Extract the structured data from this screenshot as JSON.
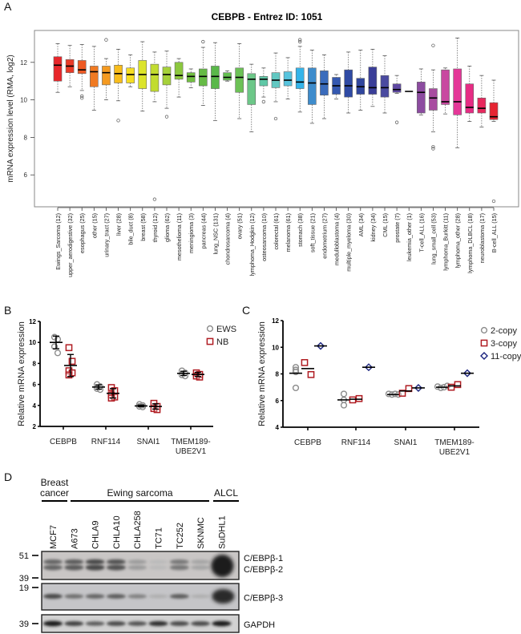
{
  "panels": {
    "A": {
      "letter": "A"
    },
    "B": {
      "letter": "B"
    },
    "C": {
      "letter": "C"
    },
    "D": {
      "letter": "D"
    }
  },
  "chart_data": [
    {
      "id": "A",
      "type": "box",
      "title": "CEBPB  -  Entrez ID: 1051",
      "xlabel": "",
      "ylabel": "mRNA expression level (RMA, log2)",
      "ylim": [
        4.3,
        13.7
      ],
      "yticks": [
        6,
        8,
        10,
        12
      ],
      "grid": false,
      "categories": [
        "Ewings_Sarcoma (12)",
        "upper_aerodigestive (32)",
        "esophagus (25)",
        "other (15)",
        "urinary_tract (27)",
        "liver (28)",
        "bile_duct (8)",
        "breast (58)",
        "thyroid (12)",
        "glioma (62)",
        "mesothelioma (11)",
        "meningioma (3)",
        "pancreas (44)",
        "lung_NSC (131)",
        "chondrosarcoma (4)",
        "ovary (51)",
        "lymphoma_Hodgkin (12)",
        "osteosarcoma (10)",
        "colorectal (61)",
        "melanoma (61)",
        "stomach (38)",
        "soft_tissue (21)",
        "endometrium (27)",
        "medulloblastoma (4)",
        "multiple_myeloma (30)",
        "AML (34)",
        "kidney (34)",
        "CML (15)",
        "prostate (7)",
        "leukemia_other (1)",
        "T-cell_ALL (16)",
        "lung_small_cell (53)",
        "lymphoma_Burkitt (11)",
        "lymphoma_other (28)",
        "lymphoma_DLBCL (18)",
        "neuroblastoma (17)",
        "B-cell_ALL (15)"
      ],
      "boxes": [
        {
          "whislo": 10.4,
          "q1": 11.0,
          "med": 11.85,
          "q3": 12.3,
          "whishi": 13.0,
          "outliers": [],
          "color": "#e8262a"
        },
        {
          "whislo": 10.7,
          "q1": 11.45,
          "med": 11.8,
          "q3": 12.15,
          "whishi": 12.9,
          "outliers": [],
          "color": "#ea3a27"
        },
        {
          "whislo": 10.5,
          "q1": 11.4,
          "med": 11.6,
          "q3": 12.1,
          "whishi": 12.95,
          "outliers": [
            10.2,
            10.1
          ],
          "color": "#ee5a24"
        },
        {
          "whislo": 9.45,
          "q1": 10.7,
          "med": 11.5,
          "q3": 11.8,
          "whishi": 12.85,
          "outliers": [],
          "color": "#f07a22"
        },
        {
          "whislo": 10.0,
          "q1": 10.8,
          "med": 11.45,
          "q3": 11.8,
          "whishi": 12.2,
          "outliers": [
            13.2
          ],
          "color": "#f59a20"
        },
        {
          "whislo": 9.95,
          "q1": 10.9,
          "med": 11.4,
          "q3": 11.85,
          "whishi": 12.7,
          "outliers": [
            8.9
          ],
          "color": "#f8bd1c"
        },
        {
          "whislo": 10.7,
          "q1": 10.9,
          "med": 11.35,
          "q3": 11.7,
          "whishi": 12.4,
          "outliers": [],
          "color": "#f5dd22"
        },
        {
          "whislo": 9.4,
          "q1": 10.6,
          "med": 11.35,
          "q3": 12.1,
          "whishi": 13.1,
          "outliers": [],
          "color": "#dce42a"
        },
        {
          "whislo": 9.9,
          "q1": 10.45,
          "med": 11.35,
          "q3": 11.9,
          "whishi": 12.55,
          "outliers": [
            4.7
          ],
          "color": "#c2dc30"
        },
        {
          "whislo": 9.55,
          "q1": 10.8,
          "med": 11.35,
          "q3": 11.75,
          "whishi": 12.6,
          "outliers": [
            9.1
          ],
          "color": "#a6d13a"
        },
        {
          "whislo": 10.15,
          "q1": 11.1,
          "med": 11.3,
          "q3": 12.0,
          "whishi": 12.2,
          "outliers": [],
          "color": "#8cc83e"
        },
        {
          "whislo": 10.65,
          "q1": 10.95,
          "med": 11.25,
          "q3": 11.45,
          "whishi": 11.65,
          "outliers": [],
          "color": "#72bf42"
        },
        {
          "whislo": 9.7,
          "q1": 10.75,
          "med": 11.25,
          "q3": 11.65,
          "whishi": 12.8,
          "outliers": [
            13.1
          ],
          "color": "#66bb46"
        },
        {
          "whislo": 8.9,
          "q1": 10.6,
          "med": 11.25,
          "q3": 11.8,
          "whishi": 13.05,
          "outliers": [],
          "color": "#5ab84a"
        },
        {
          "whislo": 11.0,
          "q1": 11.05,
          "med": 11.2,
          "q3": 11.45,
          "whishi": 11.55,
          "outliers": [],
          "color": "#64bf50"
        },
        {
          "whislo": 9.0,
          "q1": 10.4,
          "med": 11.2,
          "q3": 11.7,
          "whishi": 13.0,
          "outliers": [],
          "color": "#6cc156"
        },
        {
          "whislo": 8.3,
          "q1": 9.75,
          "med": 11.1,
          "q3": 11.4,
          "whishi": 11.9,
          "outliers": [],
          "color": "#6cc788"
        },
        {
          "whislo": 10.15,
          "q1": 10.75,
          "med": 11.1,
          "q3": 11.25,
          "whishi": 11.7,
          "outliers": [
            9.9
          ],
          "color": "#5ec8a6"
        },
        {
          "whislo": 9.9,
          "q1": 10.65,
          "med": 11.05,
          "q3": 11.45,
          "whishi": 12.5,
          "outliers": [
            9.0
          ],
          "color": "#62c8c2"
        },
        {
          "whislo": 10.05,
          "q1": 10.75,
          "med": 11.05,
          "q3": 11.5,
          "whishi": 12.25,
          "outliers": [],
          "color": "#58c4de"
        },
        {
          "whislo": 9.35,
          "q1": 10.6,
          "med": 10.95,
          "q3": 11.7,
          "whishi": 12.85,
          "outliers": [
            13.2,
            13.1
          ],
          "color": "#34b4ea"
        },
        {
          "whislo": 8.75,
          "q1": 9.75,
          "med": 10.9,
          "q3": 11.7,
          "whishi": 12.65,
          "outliers": [],
          "color": "#3e8ccc"
        },
        {
          "whislo": 9.0,
          "q1": 10.25,
          "med": 10.85,
          "q3": 11.55,
          "whishi": 12.4,
          "outliers": [],
          "color": "#3a6cbc"
        },
        {
          "whislo": 10.05,
          "q1": 10.3,
          "med": 10.75,
          "q3": 11.2,
          "whishi": 11.35,
          "outliers": [],
          "color": "#3458b0"
        },
        {
          "whislo": 9.3,
          "q1": 10.15,
          "med": 10.75,
          "q3": 11.6,
          "whishi": 12.55,
          "outliers": [],
          "color": "#2f4aa4"
        },
        {
          "whislo": 9.45,
          "q1": 10.3,
          "med": 10.7,
          "q3": 11.15,
          "whishi": 12.65,
          "outliers": [],
          "color": "#30469e"
        },
        {
          "whislo": 9.65,
          "q1": 10.3,
          "med": 10.65,
          "q3": 11.75,
          "whishi": 12.7,
          "outliers": [],
          "color": "#3a3e98"
        },
        {
          "whislo": 9.3,
          "q1": 10.15,
          "med": 10.65,
          "q3": 11.3,
          "whishi": 12.35,
          "outliers": [],
          "color": "#4a4aa0"
        },
        {
          "whislo": 10.35,
          "q1": 10.4,
          "med": 10.55,
          "q3": 10.85,
          "whishi": 11.3,
          "outliers": [
            8.8
          ],
          "color": "#5e48a2"
        },
        {
          "whislo": 10.45,
          "q1": 10.45,
          "med": 10.45,
          "q3": 10.45,
          "whishi": 10.45,
          "outliers": [],
          "color": "#6a46a4"
        },
        {
          "whislo": 9.2,
          "q1": 9.3,
          "med": 10.4,
          "q3": 10.95,
          "whishi": 11.65,
          "outliers": [],
          "color": "#8c4ca0"
        },
        {
          "whislo": 8.3,
          "q1": 9.45,
          "med": 10.1,
          "q3": 10.6,
          "whishi": 11.6,
          "outliers": [
            12.9,
            7.5,
            7.4
          ],
          "color": "#a84ca0"
        },
        {
          "whislo": 9.25,
          "q1": 9.75,
          "med": 9.9,
          "q3": 11.6,
          "whishi": 11.7,
          "outliers": [],
          "color": "#c848a0"
        },
        {
          "whislo": 7.45,
          "q1": 9.2,
          "med": 9.9,
          "q3": 11.65,
          "whishi": 13.3,
          "outliers": [],
          "color": "#e43898"
        },
        {
          "whislo": 8.85,
          "q1": 9.3,
          "med": 9.6,
          "q3": 10.85,
          "whishi": 11.8,
          "outliers": [],
          "color": "#e62c84"
        },
        {
          "whislo": 8.55,
          "q1": 9.3,
          "med": 9.55,
          "q3": 10.1,
          "whishi": 11.3,
          "outliers": [],
          "color": "#e8285e"
        },
        {
          "whislo": 8.85,
          "q1": 8.95,
          "med": 9.1,
          "q3": 9.85,
          "whishi": 11.05,
          "outliers": [
            4.6
          ],
          "color": "#e62432"
        }
      ]
    },
    {
      "id": "B",
      "type": "scatter",
      "title": "",
      "xlabel": "",
      "ylabel": "Relative mRNA expression",
      "ylim": [
        2,
        12
      ],
      "yticks": [
        2,
        4,
        6,
        8,
        10,
        12
      ],
      "categories": [
        "CEBPB",
        "RNF114",
        "SNAI1",
        "TMEM189-\nUBE2V1"
      ],
      "category_lines": [
        [
          "CEBPB"
        ],
        [
          "RNF114"
        ],
        [
          "SNAI1"
        ],
        [
          "TMEM189-",
          "UBE2V1"
        ]
      ],
      "legend": {
        "placement": "top-right",
        "entries": [
          {
            "label": "EWS",
            "marker": "circle",
            "color": "#8c8c8c"
          },
          {
            "label": "NB",
            "marker": "square",
            "color": "#b01c22"
          }
        ]
      },
      "series": [
        {
          "name": "EWS",
          "marker": "circle",
          "color": "#8c8c8c",
          "points": [
            [
              10.5,
              10.3,
              9.6,
              9.0
            ],
            [
              6.0,
              5.8,
              5.6,
              5.5
            ],
            [
              4.1,
              4.0,
              3.9,
              3.85
            ],
            [
              7.3,
              7.1,
              6.9,
              6.8
            ]
          ],
          "mean": [
            10.0,
            5.75,
            3.95,
            7.05
          ],
          "err": [
            0.6,
            0.2,
            0.08,
            0.2
          ]
        },
        {
          "name": "NB",
          "marker": "square",
          "color": "#b01c22",
          "points": [
            [
              9.5,
              8.2,
              7.3,
              7.1,
              6.9
            ],
            [
              5.7,
              5.4,
              5.0,
              4.8,
              4.7
            ],
            [
              4.2,
              3.9,
              3.7,
              3.6
            ],
            [
              7.1,
              6.95,
              6.8,
              6.7
            ]
          ],
          "mean": [
            7.8,
            5.15,
            3.9,
            6.95
          ],
          "err": [
            1.05,
            0.45,
            0.25,
            0.2
          ]
        }
      ]
    },
    {
      "id": "C",
      "type": "scatter",
      "title": "",
      "xlabel": "",
      "ylabel": "Relative mRNA expression",
      "ylim": [
        4,
        12
      ],
      "yticks": [
        4,
        6,
        8,
        10,
        12
      ],
      "categories": [
        "CEBPB",
        "RNF114",
        "SNAI1",
        "TMEM189-\nUBE2V1"
      ],
      "category_lines": [
        [
          "CEBPB"
        ],
        [
          "RNF114"
        ],
        [
          "SNAI1"
        ],
        [
          "TMEM189-",
          "UBE2V1"
        ]
      ],
      "legend": {
        "placement": "top-right",
        "entries": [
          {
            "label": "2-copy",
            "marker": "circle",
            "color": "#8c8c8c"
          },
          {
            "label": "3-copy",
            "marker": "square",
            "color": "#b01c22"
          },
          {
            "label": "11-copy",
            "marker": "diamond",
            "color": "#1a237e"
          }
        ]
      },
      "series": [
        {
          "name": "2-copy",
          "marker": "circle",
          "color": "#8c8c8c",
          "points": [
            [
              8.5,
              8.3,
              8.15,
              6.95
            ],
            [
              6.5,
              6.05,
              5.65
            ],
            [
              6.5,
              6.45,
              6.5,
              6.45
            ],
            [
              7.05,
              6.95,
              7.0,
              7.1
            ]
          ],
          "mean": [
            8.05,
            6.05,
            6.45,
            7.0
          ]
        },
        {
          "name": "3-copy",
          "marker": "square",
          "color": "#b01c22",
          "points": [
            [
              8.85,
              7.95
            ],
            [
              6.05,
              6.15
            ],
            [
              6.55,
              6.9
            ],
            [
              7.0,
              7.2
            ]
          ],
          "mean": [
            8.4,
            6.1,
            6.72,
            7.1
          ]
        },
        {
          "name": "11-copy",
          "marker": "diamond",
          "color": "#1a237e",
          "points": [
            [
              10.1
            ],
            [
              8.5
            ],
            [
              6.95
            ],
            [
              8.05
            ]
          ],
          "mean": [
            10.1,
            8.5,
            6.95,
            8.05
          ]
        }
      ]
    }
  ],
  "western_blot": {
    "groups": [
      {
        "label_lines": [
          "Breast",
          "cancer"
        ],
        "lanes": [
          0
        ]
      },
      {
        "label_lines": [
          "Ewing sarcoma"
        ],
        "lanes": [
          1,
          2,
          3,
          4,
          5,
          6,
          7
        ]
      },
      {
        "label_lines": [
          "ALCL"
        ],
        "lanes": [
          8
        ]
      }
    ],
    "lanes": [
      "MCF7",
      "A673",
      "CHLA9",
      "CHLA10",
      "CHLA258",
      "TC71",
      "TC252",
      "SKNMC",
      "SuDHL1"
    ],
    "blots": [
      {
        "name": "cebpb-1-2",
        "mw_markers": [
          "51",
          "39"
        ],
        "labels": [
          "C/EBPβ-1",
          "C/EBPβ-2"
        ],
        "intensity": [
          0.55,
          0.6,
          0.7,
          0.65,
          0.25,
          0.08,
          0.45,
          0.2,
          1.0
        ]
      },
      {
        "name": "cebpb-3",
        "mw_markers": [
          "19"
        ],
        "labels": [
          "C/EBPβ-3"
        ],
        "intensity": [
          0.7,
          0.5,
          0.55,
          0.6,
          0.4,
          0.15,
          0.6,
          0.15,
          1.0
        ]
      },
      {
        "name": "gapdh",
        "mw_markers": [
          "39"
        ],
        "labels": [
          "GAPDH"
        ],
        "intensity": [
          0.95,
          0.75,
          0.6,
          0.7,
          0.65,
          0.85,
          0.7,
          0.7,
          0.95
        ]
      }
    ]
  }
}
